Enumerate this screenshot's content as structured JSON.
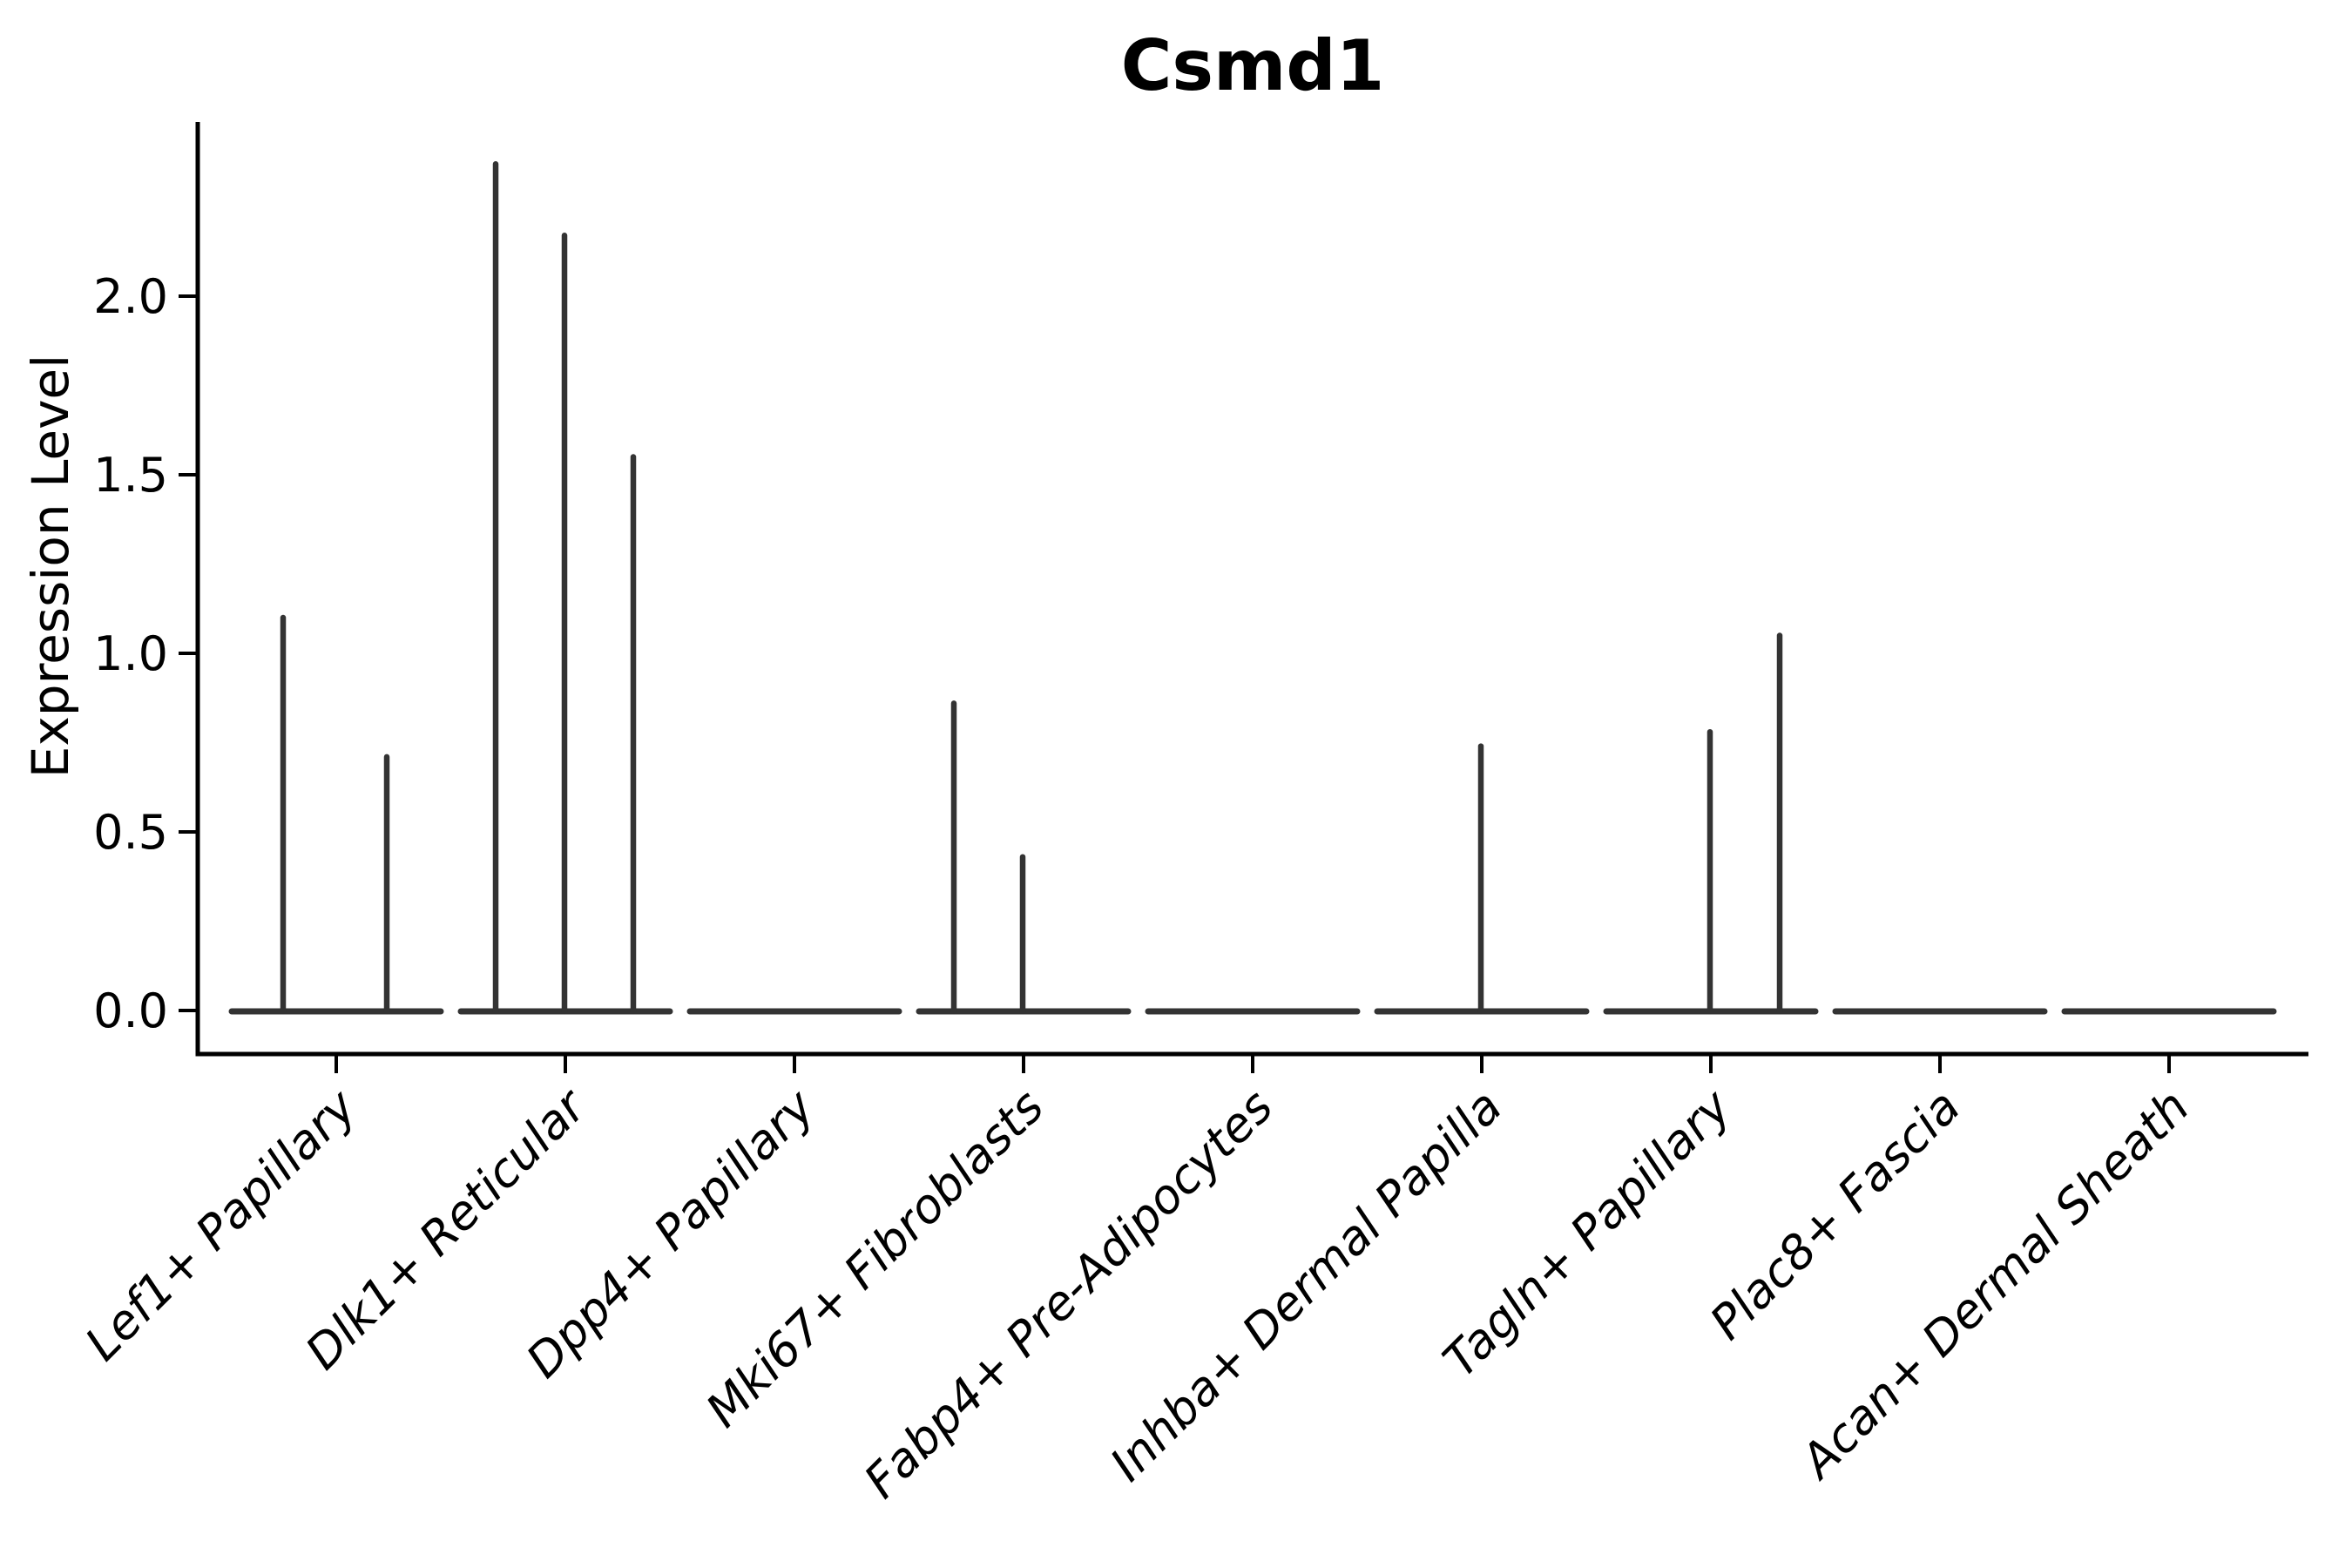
{
  "chart_data": {
    "type": "violin",
    "title": "Csmd1",
    "xlabel": "",
    "ylabel": "Expression Level",
    "ylim": [
      -0.12,
      2.49
    ],
    "yticks": [
      0.0,
      0.5,
      1.0,
      1.5,
      2.0
    ],
    "ytick_labels": [
      "0.0",
      "0.5",
      "1.0",
      "1.5",
      "2.0"
    ],
    "grid": false,
    "legend": "none",
    "categories": [
      "Lef1+ Papillary",
      "Dlk1+ Reticular",
      "Dpp4+ Papillary",
      "Mki67+ Fibroblasts",
      "Fabp4+ Pre-Adipocytes",
      "Inhba+ Dermal Papilla",
      "Tagln+ Papillary",
      "Plac8+ Fascia",
      "Acan+ Dermal Sheath"
    ],
    "baseline_value": 0.0,
    "series": [
      {
        "name": "Lef1+ Papillary",
        "spikes": [
          {
            "dx": -61,
            "value": 1.1
          },
          {
            "dx": 58,
            "value": 0.71
          }
        ]
      },
      {
        "name": "Dlk1+ Reticular",
        "spikes": [
          {
            "dx": -80,
            "value": 2.37
          },
          {
            "dx": -1,
            "value": 2.17
          },
          {
            "dx": 78,
            "value": 1.55
          }
        ]
      },
      {
        "name": "Dpp4+ Papillary",
        "spikes": []
      },
      {
        "name": "Mki67+ Fibroblasts",
        "spikes": [
          {
            "dx": -80,
            "value": 0.86
          },
          {
            "dx": -1,
            "value": 0.43
          }
        ]
      },
      {
        "name": "Fabp4+ Pre-Adipocytes",
        "spikes": []
      },
      {
        "name": "Inhba+ Dermal Papilla",
        "spikes": [
          {
            "dx": -1,
            "value": 0.74
          }
        ]
      },
      {
        "name": "Tagln+ Papillary",
        "spikes": [
          {
            "dx": -1,
            "value": 0.78
          },
          {
            "dx": 79,
            "value": 1.05
          }
        ]
      },
      {
        "name": "Plac8+ Fascia",
        "spikes": []
      },
      {
        "name": "Acan+ Dermal Sheath",
        "spikes": []
      }
    ],
    "colors": {
      "violin_stroke": "#333333",
      "axis": "#000000",
      "text": "#000000",
      "background": "#ffffff"
    }
  }
}
